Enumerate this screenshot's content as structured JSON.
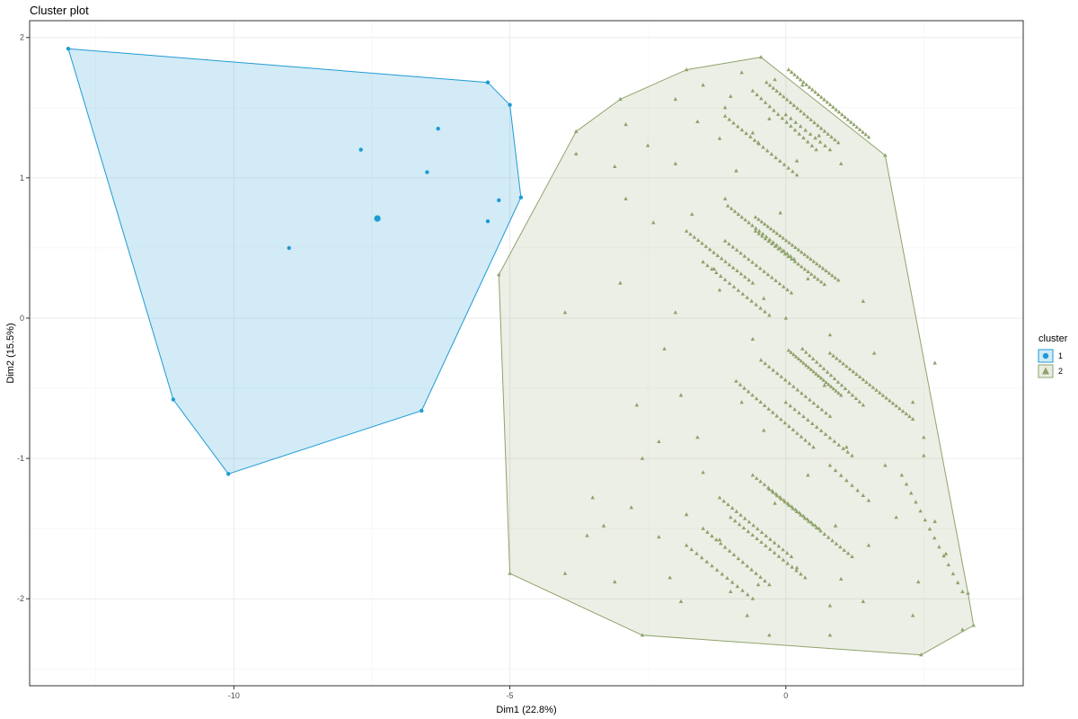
{
  "chart_data": {
    "type": "scatter",
    "title": "Cluster plot",
    "xlabel": "Dim1 (22.8%)",
    "ylabel": "Dim2 (15.5%)",
    "xlim": [
      -13.7,
      4.3
    ],
    "ylim": [
      -2.62,
      2.12
    ],
    "x_ticks": [
      -10,
      -5,
      0
    ],
    "x_tick_labels": [
      "-10",
      "-5",
      "0"
    ],
    "y_ticks": [
      2,
      1,
      0,
      -1,
      -2
    ],
    "y_tick_labels": [
      "2",
      "1",
      "0",
      "-1",
      "-2"
    ],
    "grid": true,
    "legend": {
      "title": "cluster",
      "placement": "right",
      "entries": [
        "1",
        "2"
      ]
    },
    "series": [
      {
        "name": "1",
        "color": "#1F9BD4",
        "marker": "circle",
        "points": [
          [
            -13.0,
            1.92
          ],
          [
            -5.4,
            1.68
          ],
          [
            -5.0,
            1.52
          ],
          [
            -6.3,
            1.35
          ],
          [
            -7.7,
            1.2
          ],
          [
            -6.5,
            1.04
          ],
          [
            -5.2,
            0.84
          ],
          [
            -4.8,
            0.86
          ],
          [
            -7.4,
            0.71
          ],
          [
            -5.4,
            0.69
          ],
          [
            -9.0,
            0.5
          ],
          [
            -11.1,
            -0.58
          ],
          [
            -6.6,
            -0.66
          ],
          [
            -10.1,
            -1.11
          ]
        ],
        "hull": [
          [
            -13.0,
            1.92
          ],
          [
            -5.4,
            1.68
          ],
          [
            -5.0,
            1.52
          ],
          [
            -4.8,
            0.86
          ],
          [
            -6.6,
            -0.66
          ],
          [
            -10.1,
            -1.11
          ],
          [
            -11.1,
            -0.58
          ]
        ],
        "centroid": [
          -7.4,
          0.71
        ]
      },
      {
        "name": "2",
        "color": "#8FA36B",
        "marker": "triangle",
        "hull": [
          [
            -0.45,
            1.86
          ],
          [
            -1.8,
            1.77
          ],
          [
            -3.0,
            1.56
          ],
          [
            -3.8,
            1.33
          ],
          [
            -5.2,
            0.31
          ],
          [
            -5.0,
            -1.82
          ],
          [
            -2.6,
            -2.26
          ],
          [
            2.45,
            -2.4
          ],
          [
            3.4,
            -2.19
          ],
          [
            3.3,
            -1.96
          ],
          [
            1.8,
            1.16
          ]
        ],
        "points": [
          [
            -0.45,
            1.86
          ],
          [
            -1.8,
            1.77
          ],
          [
            -3.0,
            1.56
          ],
          [
            -3.8,
            1.33
          ],
          [
            -5.2,
            0.31
          ],
          [
            -5.0,
            -1.82
          ],
          [
            -2.6,
            -2.26
          ],
          [
            2.45,
            -2.4
          ],
          [
            3.4,
            -2.19
          ],
          [
            3.3,
            -1.96
          ],
          [
            1.8,
            1.16
          ],
          [
            -1.5,
            1.66
          ],
          [
            -0.8,
            1.75
          ],
          [
            -0.2,
            1.7
          ],
          [
            -2.0,
            1.56
          ],
          [
            -1.0,
            1.58
          ],
          [
            0.3,
            1.66
          ],
          [
            -1.6,
            1.4
          ],
          [
            -0.3,
            1.42
          ],
          [
            0.6,
            1.3
          ],
          [
            -2.5,
            1.23
          ],
          [
            -1.2,
            1.28
          ],
          [
            -0.6,
            1.32
          ],
          [
            -3.8,
            1.17
          ],
          [
            -3.1,
            1.08
          ],
          [
            -2.0,
            1.1
          ],
          [
            -0.9,
            1.05
          ],
          [
            0.2,
            1.12
          ],
          [
            -2.9,
            0.85
          ],
          [
            -1.7,
            0.74
          ],
          [
            -2.4,
            0.68
          ],
          [
            -1.1,
            0.85
          ],
          [
            -0.1,
            0.75
          ],
          [
            -3.0,
            0.25
          ],
          [
            -4.0,
            0.04
          ],
          [
            -2.0,
            0.04
          ],
          [
            -1.2,
            0.2
          ],
          [
            -0.4,
            0.14
          ],
          [
            1.4,
            0.12
          ],
          [
            -0.6,
            -0.15
          ],
          [
            0.8,
            -0.12
          ],
          [
            -1.9,
            -0.55
          ],
          [
            -0.8,
            -0.6
          ],
          [
            0.7,
            -0.48
          ],
          [
            2.3,
            -0.6
          ],
          [
            -1.6,
            -0.85
          ],
          [
            -0.4,
            -0.8
          ],
          [
            1.1,
            -0.92
          ],
          [
            2.5,
            -0.85
          ],
          [
            -2.3,
            -0.88
          ],
          [
            -2.6,
            -1.0
          ],
          [
            -1.5,
            -1.1
          ],
          [
            0.4,
            -1.12
          ],
          [
            1.8,
            -1.05
          ],
          [
            2.5,
            -0.98
          ],
          [
            -3.5,
            -1.28
          ],
          [
            -2.8,
            -1.35
          ],
          [
            -1.8,
            -1.4
          ],
          [
            0.9,
            -1.48
          ],
          [
            2.0,
            -1.42
          ],
          [
            -3.3,
            -1.48
          ],
          [
            -2.3,
            -1.56
          ],
          [
            -1.2,
            -1.58
          ],
          [
            1.5,
            -1.62
          ],
          [
            2.9,
            -1.68
          ],
          [
            -4.0,
            -1.82
          ],
          [
            -3.1,
            -1.88
          ],
          [
            -2.1,
            -1.85
          ],
          [
            -0.5,
            -1.9
          ],
          [
            1.0,
            -1.86
          ],
          [
            2.4,
            -1.88
          ],
          [
            -1.9,
            -2.02
          ],
          [
            -0.7,
            -2.12
          ],
          [
            0.8,
            -2.05
          ],
          [
            2.3,
            -2.12
          ],
          [
            -0.3,
            -2.26
          ],
          [
            0.8,
            -2.26
          ],
          [
            3.2,
            -2.22
          ],
          [
            -0.5,
            1.25
          ],
          [
            1.0,
            1.1
          ],
          [
            -1.3,
            0.35
          ],
          [
            0.4,
            0.28
          ],
          [
            1.6,
            -0.25
          ],
          [
            2.7,
            -0.32
          ],
          [
            -2.7,
            -0.62
          ],
          [
            -0.2,
            -1.32
          ],
          [
            0.2,
            -1.78
          ],
          [
            -1.0,
            -1.95
          ],
          [
            1.4,
            -2.02
          ],
          [
            -3.6,
            -1.55
          ],
          [
            2.7,
            -1.45
          ],
          [
            -2.2,
            -0.22
          ],
          [
            0.0,
            0.0
          ],
          [
            -2.9,
            1.38
          ],
          [
            -1.1,
            1.5
          ]
        ],
        "diagonal_runs": [
          {
            "from": [
              0.05,
              1.77
            ],
            "to": [
              1.5,
              1.29
            ],
            "n": 28
          },
          {
            "from": [
              -0.35,
              1.68
            ],
            "to": [
              0.95,
              1.25
            ],
            "n": 22
          },
          {
            "from": [
              -0.6,
              1.62
            ],
            "to": [
              0.55,
              1.2
            ],
            "n": 16
          },
          {
            "from": [
              -1.1,
              1.44
            ],
            "to": [
              0.2,
              1.02
            ],
            "n": 18
          },
          {
            "from": [
              0.0,
              1.45
            ],
            "to": [
              0.8,
              1.2
            ],
            "n": 10
          },
          {
            "from": [
              -0.55,
              0.72
            ],
            "to": [
              0.95,
              0.27
            ],
            "n": 28
          },
          {
            "from": [
              -0.55,
              0.62
            ],
            "to": [
              0.7,
              0.24
            ],
            "n": 22
          },
          {
            "from": [
              -1.05,
              0.8
            ],
            "to": [
              0.15,
              0.42
            ],
            "n": 20
          },
          {
            "from": [
              -1.1,
              0.55
            ],
            "to": [
              0.1,
              0.18
            ],
            "n": 18
          },
          {
            "from": [
              -1.8,
              0.62
            ],
            "to": [
              -0.6,
              0.25
            ],
            "n": 18
          },
          {
            "from": [
              -1.5,
              0.4
            ],
            "to": [
              -0.3,
              0.02
            ],
            "n": 16
          },
          {
            "from": [
              0.05,
              -0.23
            ],
            "to": [
              1.0,
              -0.55
            ],
            "n": 22
          },
          {
            "from": [
              0.3,
              -0.22
            ],
            "to": [
              1.4,
              -0.62
            ],
            "n": 18
          },
          {
            "from": [
              0.8,
              -0.25
            ],
            "to": [
              2.3,
              -0.72
            ],
            "n": 26
          },
          {
            "from": [
              -0.45,
              -0.3
            ],
            "to": [
              0.8,
              -0.7
            ],
            "n": 18
          },
          {
            "from": [
              -0.9,
              -0.45
            ],
            "to": [
              0.5,
              -0.92
            ],
            "n": 20
          },
          {
            "from": [
              0.0,
              -0.6
            ],
            "to": [
              1.2,
              -0.98
            ],
            "n": 16
          },
          {
            "from": [
              -0.6,
              -1.12
            ],
            "to": [
              0.6,
              -1.5
            ],
            "n": 18
          },
          {
            "from": [
              -0.3,
              -1.22
            ],
            "to": [
              1.2,
              -1.7
            ],
            "n": 22
          },
          {
            "from": [
              -1.2,
              -1.28
            ],
            "to": [
              0.1,
              -1.7
            ],
            "n": 18
          },
          {
            "from": [
              -1.0,
              -1.42
            ],
            "to": [
              0.35,
              -1.85
            ],
            "n": 18
          },
          {
            "from": [
              -1.5,
              -1.5
            ],
            "to": [
              -0.3,
              -1.9
            ],
            "n": 16
          },
          {
            "from": [
              -1.8,
              -1.62
            ],
            "to": [
              -0.6,
              -2.0
            ],
            "n": 14
          },
          {
            "from": [
              0.8,
              -1.05
            ],
            "to": [
              1.5,
              -1.3
            ],
            "n": 8
          },
          {
            "from": [
              2.1,
              -1.12
            ],
            "to": [
              3.2,
              -1.95
            ],
            "n": 14
          }
        ]
      }
    ]
  }
}
